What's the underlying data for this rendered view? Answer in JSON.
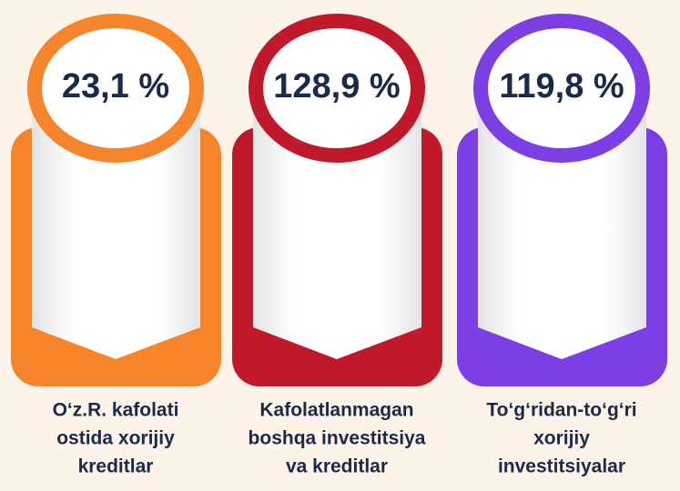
{
  "cards": [
    {
      "value": "23,1 %",
      "color": "#f5842a",
      "caption": [
        "O‘z.R. kafolati",
        "ostida xorijiy",
        "kreditlar"
      ]
    },
    {
      "value": "128,9 %",
      "color": "#c0192b",
      "caption": [
        "Kafolatlanmagan",
        "boshqa investitsiya",
        "va kreditlar"
      ]
    },
    {
      "value": "119,8 %",
      "color": "#7b3fe4",
      "caption": [
        "To‘g‘ridan-to‘g‘ri",
        "xorijiy",
        "investitsiyalar"
      ]
    }
  ]
}
